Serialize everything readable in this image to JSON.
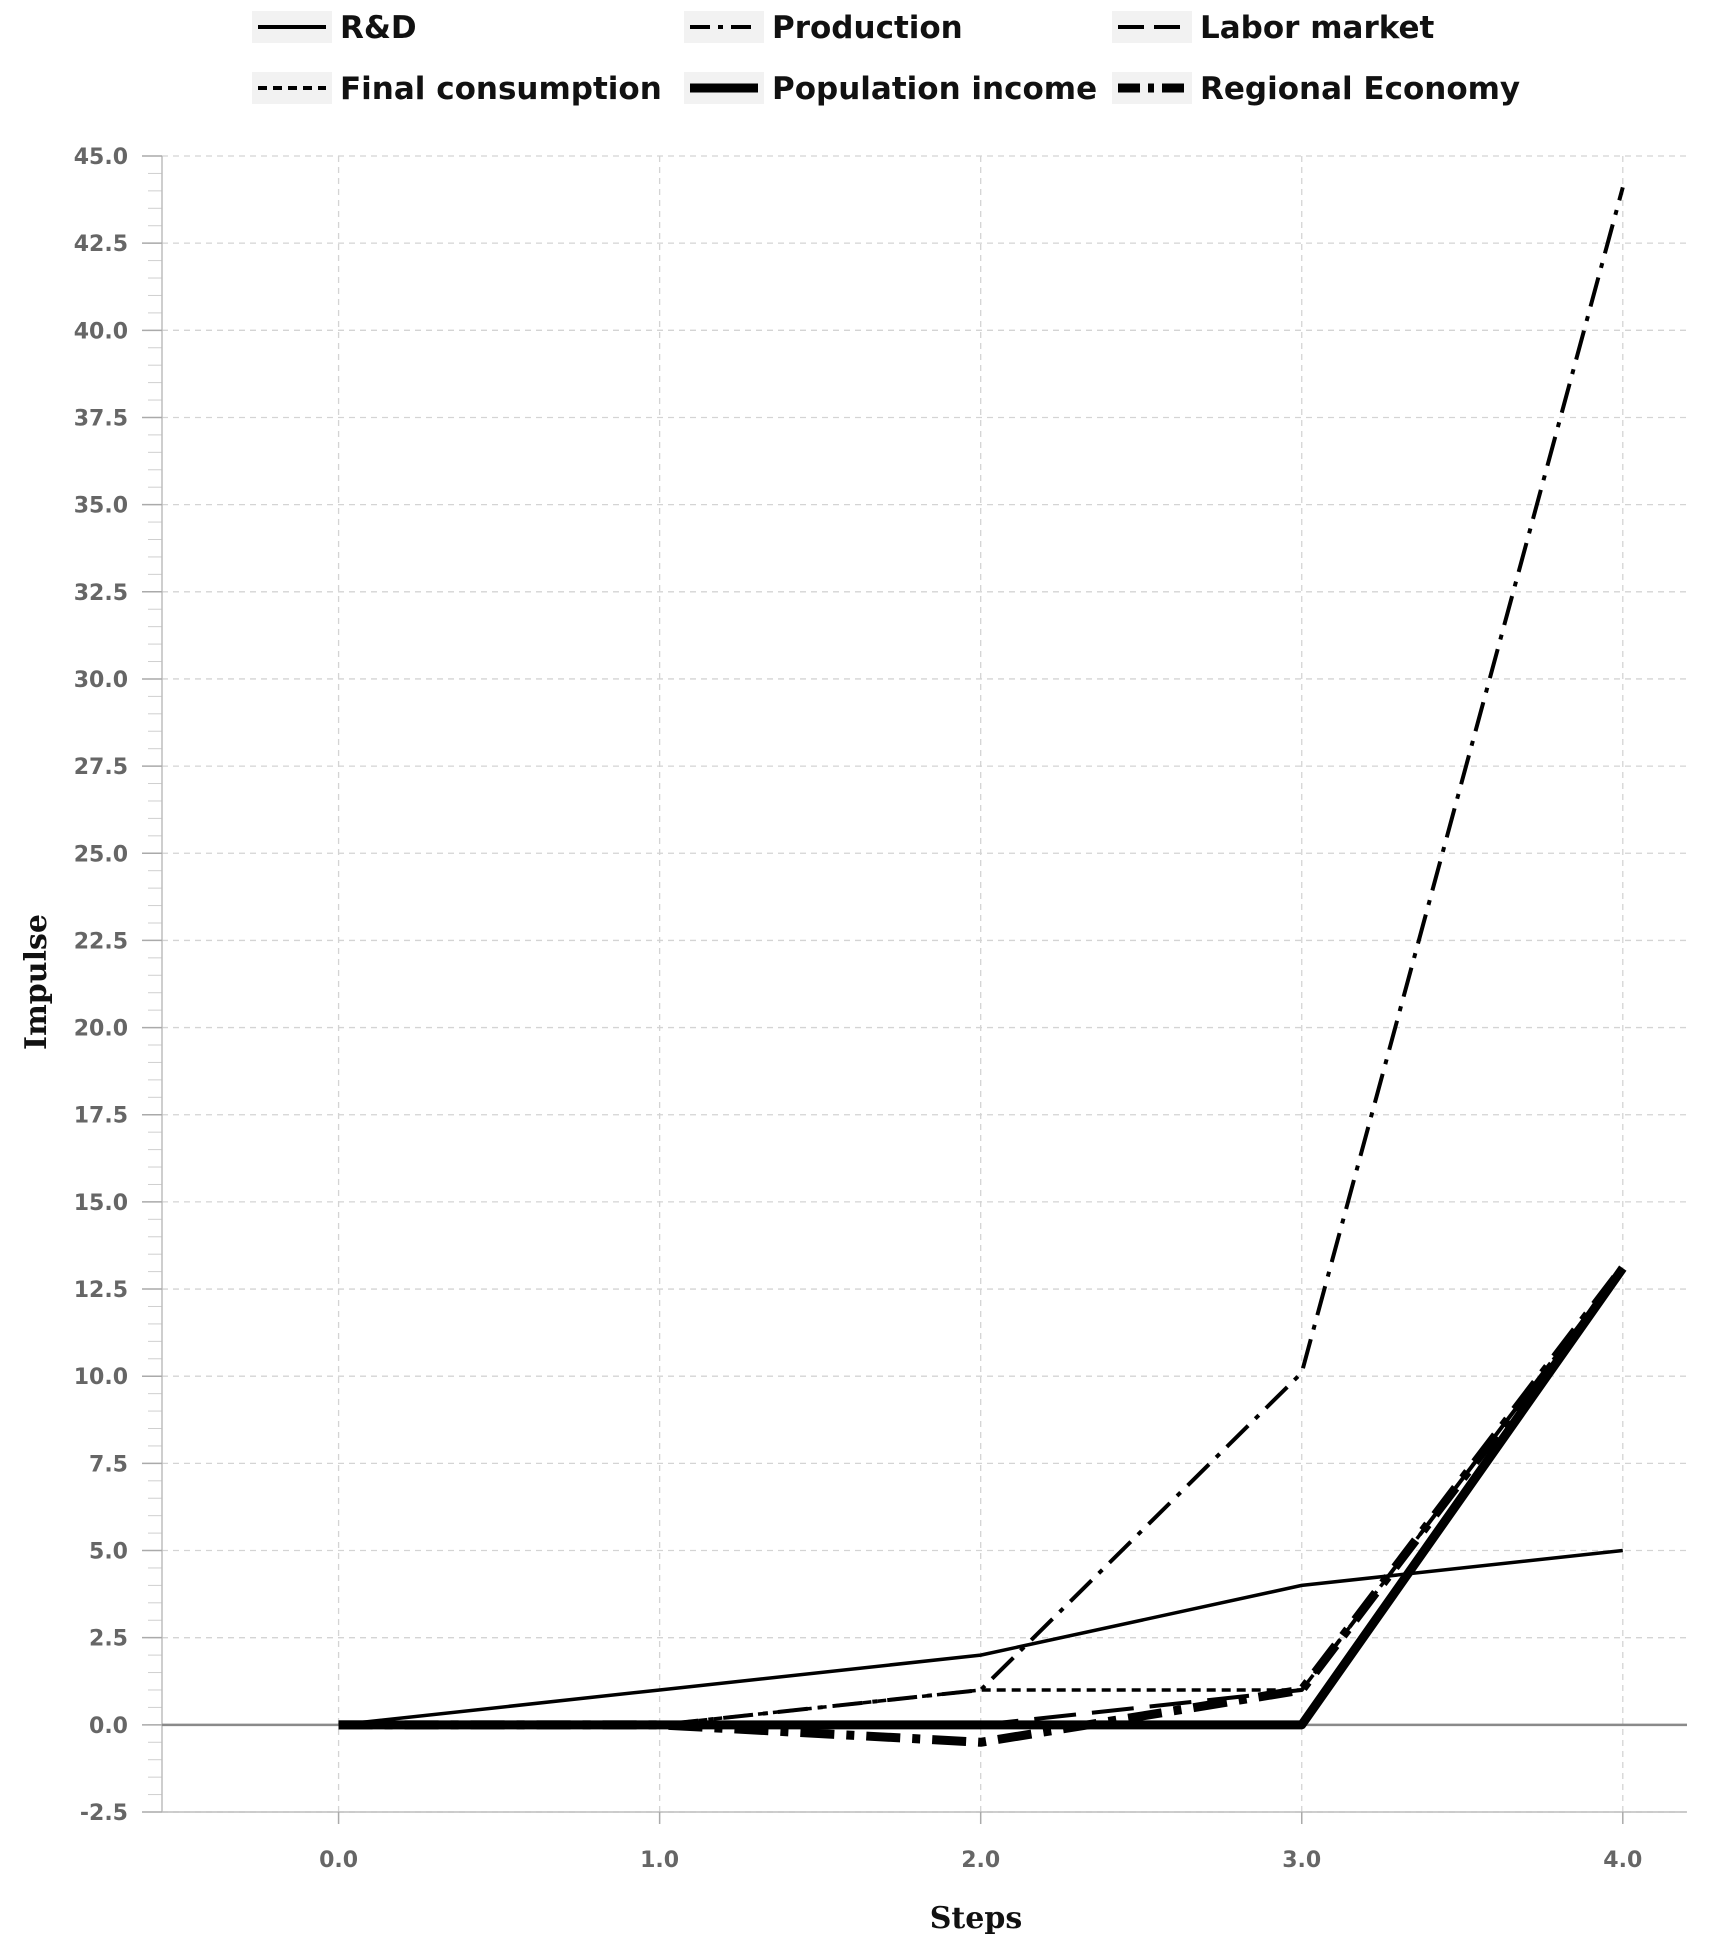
{
  "chart_data": {
    "type": "line",
    "xlabel": "Steps",
    "ylabel": "Impulse",
    "x": [
      0,
      1,
      2,
      3,
      4
    ],
    "xlim": [
      -0.55,
      4.2
    ],
    "ylim": [
      -2.5,
      45
    ],
    "xticks": [
      "0.0",
      "1.0",
      "2.0",
      "3.0",
      "4.0"
    ],
    "yticks": [
      "-2.5",
      "0.0",
      "2.5",
      "5.0",
      "7.5",
      "10.0",
      "12.5",
      "15.0",
      "17.5",
      "20.0",
      "22.5",
      "25.0",
      "27.5",
      "30.0",
      "32.5",
      "35.0",
      "37.5",
      "40.0",
      "42.5",
      "45.0"
    ],
    "grid": true,
    "legend_position": "top",
    "series": [
      {
        "name": "R&D",
        "values": [
          0,
          1,
          2,
          4,
          5
        ],
        "style": "solid-thin"
      },
      {
        "name": "Production",
        "values": [
          0,
          0,
          1,
          10.1,
          44.1
        ],
        "style": "dash-dot-thin"
      },
      {
        "name": "Labor market",
        "values": [
          0,
          0,
          0,
          1,
          13.1
        ],
        "style": "long-dash"
      },
      {
        "name": "Final consumption",
        "values": [
          0,
          0,
          1,
          1,
          13.1
        ],
        "style": "short-dash"
      },
      {
        "name": "Population income",
        "values": [
          0,
          0,
          0,
          0,
          13.1
        ],
        "style": "solid-thick"
      },
      {
        "name": "Regional Economy",
        "values": [
          0,
          0,
          -0.5,
          1,
          13.1
        ],
        "style": "dash-dot-thick"
      }
    ]
  }
}
